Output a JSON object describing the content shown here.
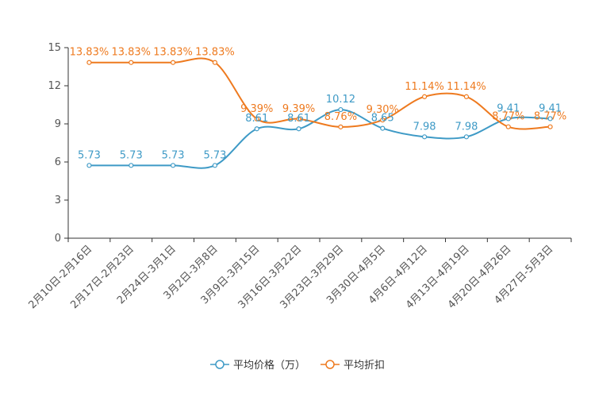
{
  "chart_data": {
    "type": "line",
    "categories": [
      "2月10日-2月16日",
      "2月17日-2月23日",
      "2月24日-3月1日",
      "3月2日-3月8日",
      "3月9日-3月15日",
      "3月16日-3月22日",
      "3月23日-3月29日",
      "3月30日-4月5日",
      "4月6日-4月12日",
      "4月13日-4月19日",
      "4月20日-4月26日",
      "4月27日-5月3日"
    ],
    "ylim": [
      0,
      15
    ],
    "yticks": [
      0,
      3,
      6,
      9,
      12,
      15
    ],
    "series": [
      {
        "name": "平均价格（万）",
        "color": "#3e9ac6",
        "values": [
          5.73,
          5.73,
          5.73,
          5.73,
          8.61,
          8.61,
          10.12,
          8.65,
          7.98,
          7.98,
          9.41,
          9.41
        ],
        "labels": [
          "5.73",
          "5.73",
          "5.73",
          "5.73",
          "8.61",
          "8.61",
          "10.12",
          "8.65",
          "7.98",
          "7.98",
          "9.41",
          "9.41"
        ]
      },
      {
        "name": "平均折扣",
        "color": "#ee7a1f",
        "values": [
          13.83,
          13.83,
          13.83,
          13.83,
          9.39,
          9.39,
          8.76,
          9.3,
          11.14,
          11.14,
          8.77,
          8.77
        ],
        "labels": [
          "13.83%",
          "13.83%",
          "13.83%",
          "13.83%",
          "9.39%",
          "9.39%",
          "8.76%",
          "9.30%",
          "11.14%",
          "11.14%",
          "8.77%",
          "8.77%"
        ]
      }
    ]
  }
}
